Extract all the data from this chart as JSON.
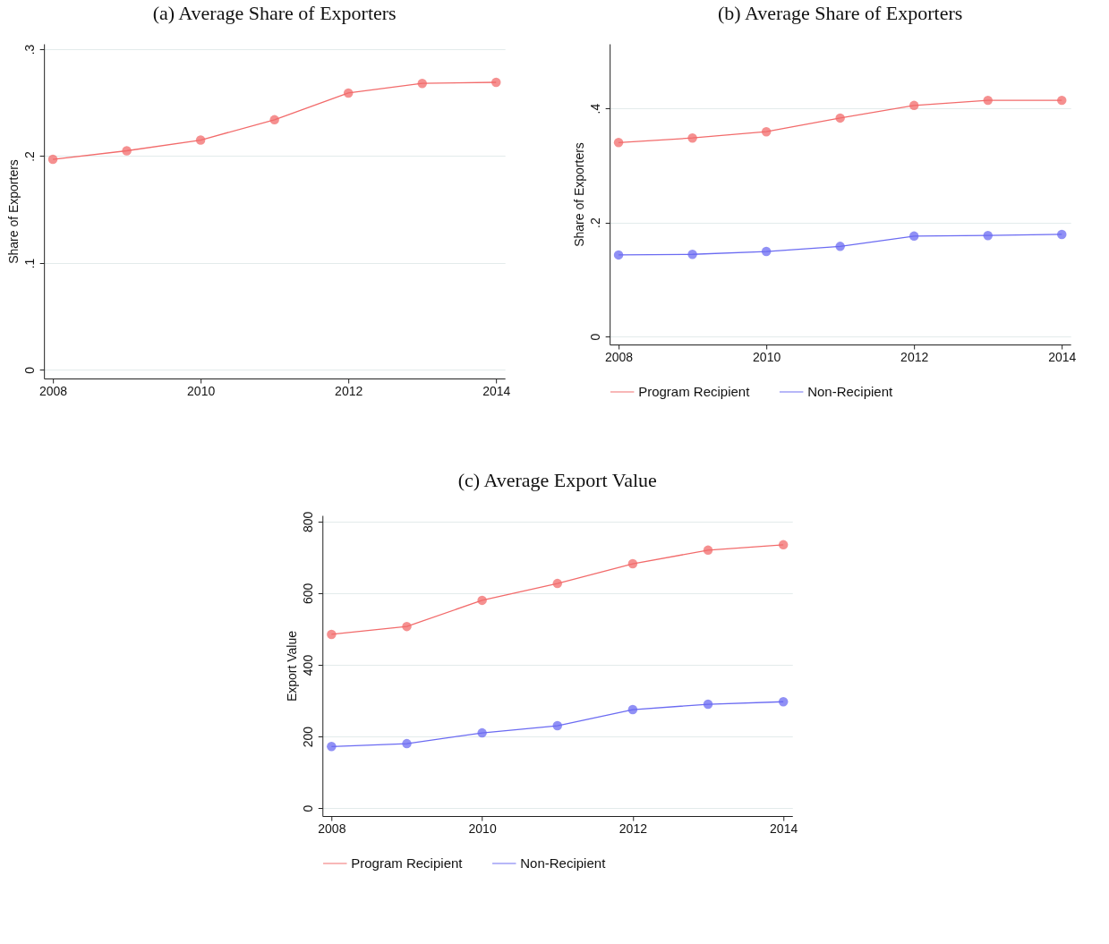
{
  "chart_data": [
    {
      "type": "line",
      "title": "(a) Average Share of Exporters",
      "ylabel": "Share of Exporters",
      "x": [
        2008,
        2009,
        2010,
        2011,
        2012,
        2013,
        2014
      ],
      "series": [
        {
          "color": "#f26b6b",
          "values": [
            0.197,
            0.205,
            0.215,
            0.234,
            0.259,
            0.268,
            0.269
          ]
        }
      ],
      "xlim": [
        2007.88,
        2014.12
      ],
      "xticks": [
        2008,
        2010,
        2012,
        2014
      ],
      "ylim": [
        -0.008,
        0.305
      ],
      "yticks": [
        0,
        {
          "value": 0.1,
          "label": ".1"
        },
        {
          "value": 0.2,
          "label": ".2"
        },
        {
          "value": 0.3,
          "label": ".3"
        }
      ],
      "grid": "y",
      "marker": "circle",
      "legend": false
    },
    {
      "type": "line",
      "title": "(b) Average Share of Exporters",
      "ylabel": "Share of Exporters",
      "x": [
        2008,
        2009,
        2010,
        2011,
        2012,
        2013,
        2014
      ],
      "series": [
        {
          "name": "Program Recipient",
          "color": "#f26b6b",
          "values": [
            0.34,
            0.348,
            0.359,
            0.383,
            0.405,
            0.414,
            0.414
          ]
        },
        {
          "name": "Non-Recipient",
          "color": "#6b6bf2",
          "values": [
            0.143,
            0.144,
            0.149,
            0.158,
            0.176,
            0.177,
            0.179
          ]
        }
      ],
      "xlim": [
        2007.88,
        2014.12
      ],
      "xticks": [
        2008,
        2010,
        2012,
        2014
      ],
      "ylim": [
        -0.014,
        0.513
      ],
      "yticks": [
        0,
        {
          "value": 0.2,
          "label": ".2"
        },
        {
          "value": 0.4,
          "label": ".4"
        }
      ],
      "grid": "y",
      "marker": "circle",
      "legend": "bottom"
    },
    {
      "type": "line",
      "title": "(c) Average Export Value",
      "ylabel": "Export Value",
      "x": [
        2008,
        2009,
        2010,
        2011,
        2012,
        2013,
        2014
      ],
      "series": [
        {
          "name": "Program Recipient",
          "color": "#f26b6b",
          "values": [
            485,
            507,
            580,
            627,
            682,
            720,
            735
          ]
        },
        {
          "name": "Non-Recipient",
          "color": "#6b6bf2",
          "values": [
            172,
            180,
            210,
            230,
            275,
            290,
            297
          ]
        }
      ],
      "xlim": [
        2007.88,
        2014.12
      ],
      "xticks": [
        2008,
        2010,
        2012,
        2014
      ],
      "ylim": [
        -22,
        817
      ],
      "yticks": [
        0,
        200,
        400,
        600,
        800
      ],
      "grid": "y",
      "marker": "circle",
      "legend": "bottom"
    }
  ]
}
